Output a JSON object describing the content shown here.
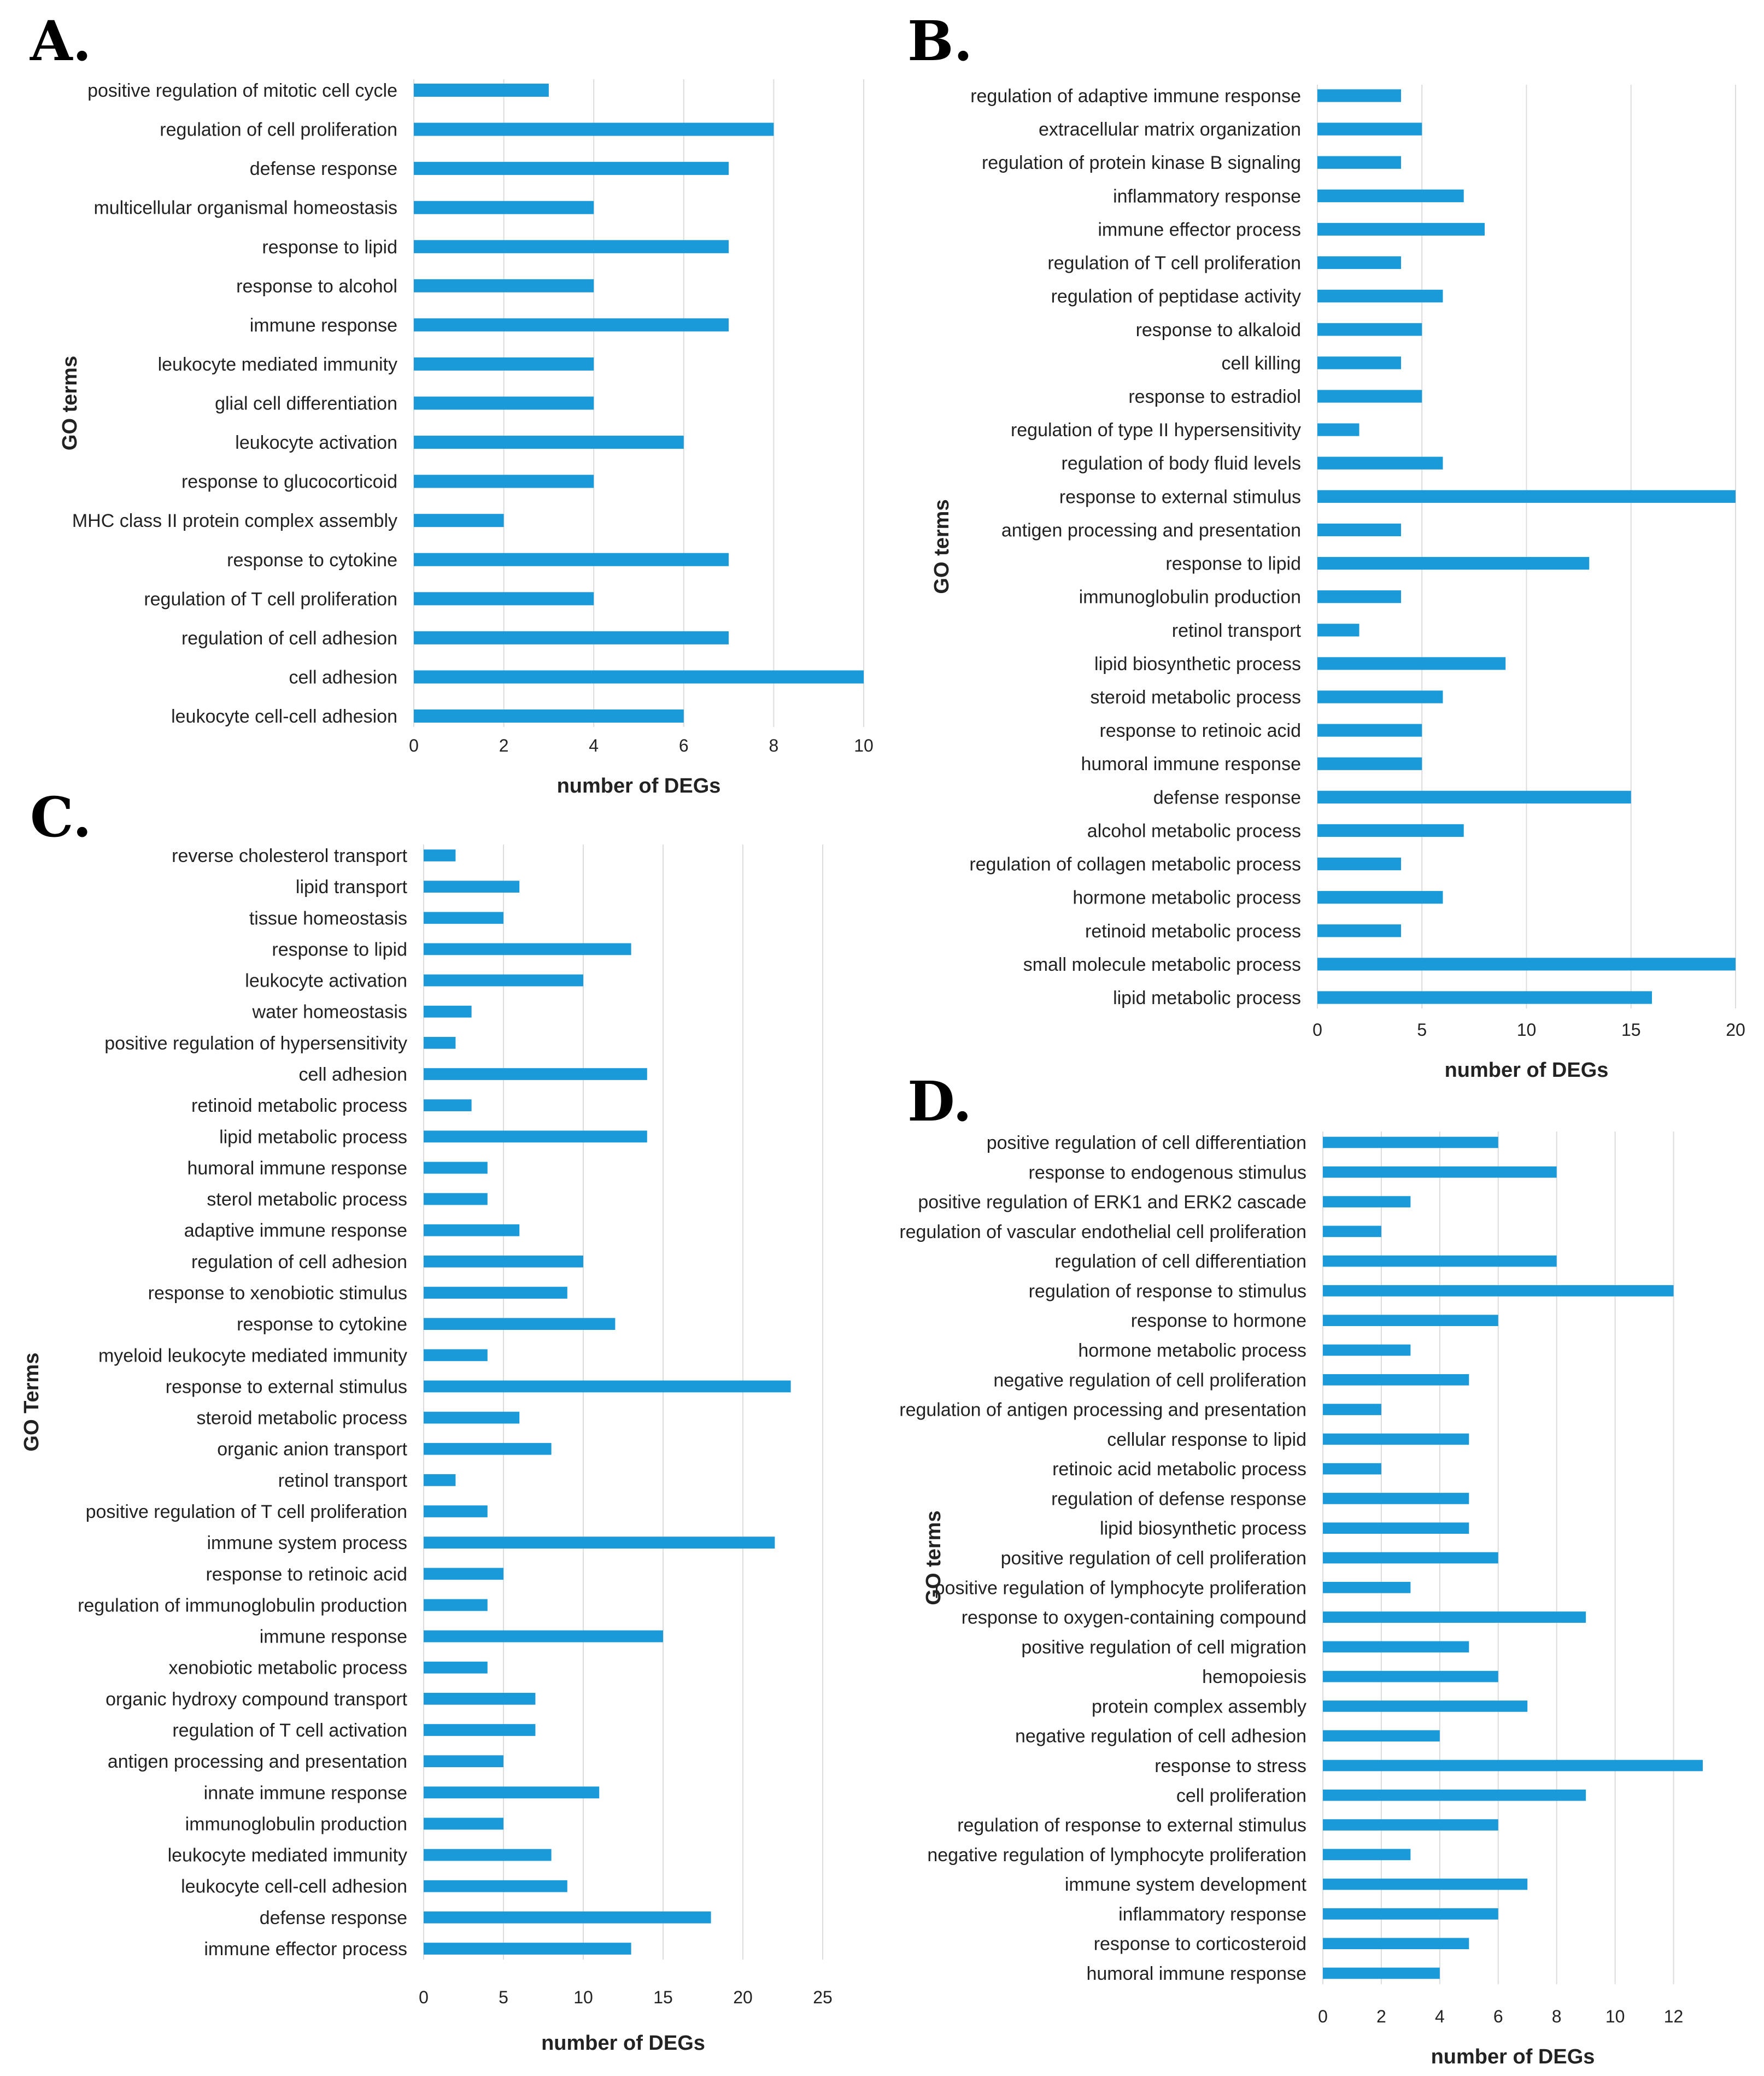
{
  "chart_data": [
    {
      "panel": "A.",
      "type": "bar",
      "orientation": "horizontal",
      "xlabel": "number of DEGs",
      "ylabel": "GO terms",
      "xlim": [
        0,
        10
      ],
      "ticks": [
        0,
        2,
        4,
        6,
        8,
        10
      ],
      "grid": true,
      "categories": [
        "positive regulation of mitotic cell cycle",
        "regulation of cell proliferation",
        "defense response",
        "multicellular organismal homeostasis",
        "response to lipid",
        "response to alcohol",
        "immune response",
        "leukocyte mediated immunity",
        "glial cell differentiation",
        "leukocyte activation",
        "response to glucocorticoid",
        "MHC class II protein complex assembly",
        "response to cytokine",
        "regulation of T cell proliferation",
        "regulation of cell adhesion",
        "cell adhesion",
        "leukocyte cell-cell adhesion"
      ],
      "values": [
        3,
        8,
        7,
        4,
        7,
        4,
        7,
        4,
        4,
        6,
        4,
        2,
        7,
        4,
        7,
        10,
        6
      ]
    },
    {
      "panel": "B.",
      "type": "bar",
      "orientation": "horizontal",
      "xlabel": "number of DEGs",
      "ylabel": "GO terms",
      "xlim": [
        0,
        20
      ],
      "ticks": [
        0,
        5,
        10,
        15,
        20
      ],
      "grid": true,
      "categories": [
        "regulation of adaptive immune response",
        "extracellular matrix organization",
        "regulation of protein kinase B signaling",
        "inflammatory response",
        "immune effector process",
        "regulation of T cell proliferation",
        "regulation of peptidase activity",
        "response to alkaloid",
        "cell killing",
        "response to estradiol",
        "regulation of type II hypersensitivity",
        "regulation of body fluid levels",
        "response to external stimulus",
        "antigen processing and presentation",
        "response to lipid",
        "immunoglobulin production",
        "retinol transport",
        "lipid biosynthetic process",
        "steroid metabolic process",
        "response to retinoic acid",
        "humoral immune response",
        "defense response",
        "alcohol metabolic process",
        "regulation of collagen metabolic process",
        "hormone metabolic process",
        "retinoid metabolic process",
        "small molecule metabolic process",
        "lipid metabolic process"
      ],
      "values": [
        4,
        5,
        4,
        7,
        8,
        4,
        6,
        5,
        4,
        5,
        2,
        6,
        20,
        4,
        13,
        4,
        2,
        9,
        6,
        5,
        5,
        15,
        7,
        4,
        6,
        4,
        20,
        16
      ]
    },
    {
      "panel": "C.",
      "type": "bar",
      "orientation": "horizontal",
      "xlabel": "number of DEGs",
      "ylabel": "GO Terms",
      "xlim": [
        0,
        25
      ],
      "ticks": [
        0,
        5,
        10,
        15,
        20,
        25
      ],
      "grid": true,
      "categories": [
        "reverse cholesterol transport",
        "lipid transport",
        "tissue homeostasis",
        "response to lipid",
        "leukocyte activation",
        "water homeostasis",
        "positive regulation of hypersensitivity",
        "cell adhesion",
        "retinoid metabolic process",
        "lipid metabolic process",
        "humoral immune response",
        "sterol metabolic process",
        "adaptive immune response",
        "regulation of cell adhesion",
        "response to xenobiotic stimulus",
        "response to cytokine",
        "myeloid leukocyte mediated immunity",
        "response to external stimulus",
        "steroid metabolic process",
        "organic anion transport",
        "retinol transport",
        "positive regulation of T cell proliferation",
        "immune system process",
        "response to retinoic acid",
        "regulation of immunoglobulin production",
        "immune response",
        "xenobiotic metabolic process",
        "organic hydroxy compound transport",
        "regulation of T cell activation",
        "antigen processing and presentation",
        "innate immune response",
        "immunoglobulin production",
        "leukocyte mediated immunity",
        "leukocyte cell-cell adhesion",
        "defense response",
        "immune effector process"
      ],
      "values": [
        2,
        6,
        5,
        13,
        10,
        3,
        2,
        14,
        3,
        14,
        4,
        4,
        6,
        10,
        9,
        12,
        4,
        23,
        6,
        8,
        2,
        4,
        22,
        5,
        4,
        15,
        4,
        7,
        7,
        5,
        11,
        5,
        8,
        9,
        18,
        13
      ]
    },
    {
      "panel": "D.",
      "type": "bar",
      "orientation": "horizontal",
      "xlabel": "number of DEGs",
      "ylabel": "GO terms",
      "xlim": [
        0,
        13
      ],
      "ticks": [
        0,
        2,
        4,
        6,
        8,
        10,
        12
      ],
      "grid": true,
      "categories": [
        "positive regulation of cell differentiation",
        "response to endogenous stimulus",
        "positive regulation of ERK1 and ERK2 cascade",
        "regulation of vascular endothelial cell proliferation",
        "regulation of cell differentiation",
        "regulation of response to stimulus",
        "response to hormone",
        "hormone metabolic process",
        "negative regulation of cell proliferation",
        "regulation of antigen processing and presentation",
        "cellular response to lipid",
        "retinoic acid metabolic process",
        "regulation of defense response",
        "lipid biosynthetic process",
        "positive regulation of cell proliferation",
        "positive regulation of lymphocyte proliferation",
        "response to oxygen-containing compound",
        "positive regulation of cell migration",
        "hemopoiesis",
        "protein complex assembly",
        "negative regulation of cell adhesion",
        "response to stress",
        "cell proliferation",
        "regulation of response to external stimulus",
        "negative regulation of lymphocyte proliferation",
        "immune system development",
        "inflammatory response",
        "response to corticosteroid",
        "humoral immune response"
      ],
      "values": [
        6,
        8,
        3,
        2,
        8,
        12,
        6,
        3,
        5,
        2,
        5,
        2,
        5,
        5,
        6,
        3,
        9,
        5,
        6,
        7,
        4,
        13,
        9,
        6,
        3,
        7,
        6,
        5,
        4
      ]
    }
  ]
}
